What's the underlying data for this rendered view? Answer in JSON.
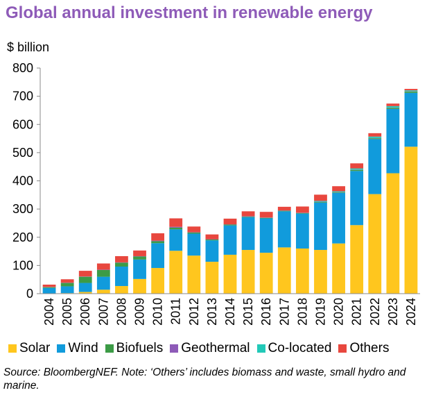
{
  "chart_data": {
    "type": "bar",
    "stacked": true,
    "title": "Global annual investment in renewable energy",
    "ylabel": "$ billion",
    "xlabel": "",
    "ylim": [
      0,
      800
    ],
    "yticks": [
      0,
      100,
      200,
      300,
      400,
      500,
      600,
      700,
      800
    ],
    "grid": false,
    "legend_position": "bottom",
    "categories": [
      "2004",
      "2005",
      "2006",
      "2007",
      "2008",
      "2009",
      "2010",
      "2011",
      "2012",
      "2013",
      "2014",
      "2015",
      "2016",
      "2017",
      "2018",
      "2019",
      "2020",
      "2021",
      "2022",
      "2023",
      "2024"
    ],
    "series": [
      {
        "name": "Solar",
        "color": "#ffc61e",
        "values": [
          1,
          2,
          6,
          14,
          27,
          52,
          91,
          152,
          135,
          113,
          138,
          155,
          145,
          164,
          160,
          155,
          178,
          243,
          353,
          427,
          521
        ]
      },
      {
        "name": "Wind",
        "color": "#119bdc",
        "values": [
          19,
          24,
          32,
          46,
          69,
          69,
          88,
          76,
          78,
          76,
          104,
          116,
          122,
          128,
          124,
          168,
          179,
          192,
          195,
          228,
          191
        ]
      },
      {
        "name": "Biofuels",
        "color": "#3c9b46",
        "values": [
          3,
          12,
          22,
          24,
          14,
          11,
          7,
          6,
          4,
          3,
          3,
          2,
          2,
          2,
          2,
          2,
          2,
          4,
          3,
          4,
          5
        ]
      },
      {
        "name": "Geothermal",
        "color": "#8e5bb8",
        "values": [
          1,
          1,
          1,
          1,
          1,
          1,
          2,
          3,
          1,
          1,
          1,
          2,
          1,
          1,
          1,
          1,
          1,
          1,
          1,
          1,
          1
        ]
      },
      {
        "name": "Co-located",
        "color": "#22c9b8",
        "values": [
          0,
          0,
          0,
          0,
          0,
          0,
          0,
          0,
          0,
          0,
          0,
          0,
          0,
          0,
          0,
          3,
          3,
          4,
          5,
          5,
          3
        ]
      },
      {
        "name": "Others",
        "color": "#e8473e",
        "values": [
          8,
          12,
          20,
          22,
          22,
          20,
          26,
          30,
          20,
          17,
          20,
          17,
          20,
          13,
          22,
          22,
          18,
          18,
          12,
          9,
          5
        ]
      }
    ],
    "source_note": "Source: BloombergNEF. Note: ‘Others’ includes biomass and waste, small hydro and marine."
  }
}
